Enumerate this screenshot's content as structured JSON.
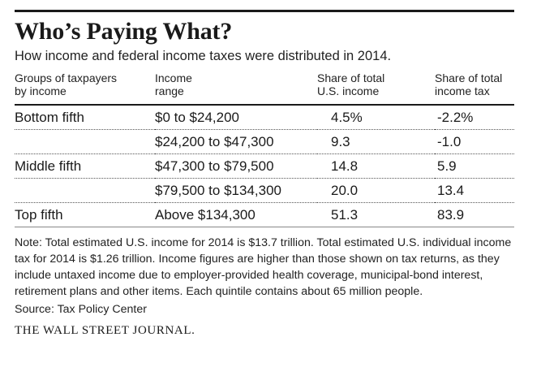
{
  "title": "Who’s Paying What?",
  "subtitle": "How income and federal income taxes were distributed in 2014.",
  "chart_data": {
    "type": "table",
    "columns": [
      [
        "Groups of taxpayers",
        "by income"
      ],
      [
        "Income",
        "range"
      ],
      [
        "Share of total",
        "U.S. income"
      ],
      [
        "Share of total",
        "income tax"
      ]
    ],
    "rows": [
      {
        "group": "Bottom fifth",
        "range": "$0 to $24,200",
        "income_share": "4.5%",
        "tax_share": "-2.2%"
      },
      {
        "group": "",
        "range": "$24,200 to $47,300",
        "income_share": "9.3",
        "tax_share": "-1.0"
      },
      {
        "group": "Middle fifth",
        "range": "$47,300 to $79,500",
        "income_share": "14.8",
        "tax_share": "5.9"
      },
      {
        "group": "",
        "range": "$79,500 to $134,300",
        "income_share": "20.0",
        "tax_share": "13.4"
      },
      {
        "group": "Top fifth",
        "range": "Above $134,300",
        "income_share": "51.3",
        "tax_share": "83.9"
      }
    ]
  },
  "note": "Note: Total estimated U.S. income for 2014 is $13.7 trillion. Total estimated U.S. individual income tax for 2014 is $1.26 trillion. Income figures are higher than those shown on tax returns, as they include untaxed income due to employer-provided health coverage, municipal-bond interest, retirement plans and other items. Each quintile contains about 65 million people.",
  "source": "Source: Tax Policy Center",
  "brand": "THE WALL STREET JOURNAL."
}
